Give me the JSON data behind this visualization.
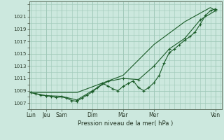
{
  "background_color": "#cce8de",
  "grid_color": "#9fc8b8",
  "line_color": "#1a5c28",
  "title": "Pression niveau de la mer( hPa )",
  "ylim": [
    1006.0,
    1023.5
  ],
  "yticks": [
    1007,
    1009,
    1011,
    1013,
    1015,
    1017,
    1019,
    1021
  ],
  "xtick_labels": [
    "Lun",
    "Jeu",
    "Sam",
    "Dim",
    "Mar",
    "Mer",
    "Ven"
  ],
  "xtick_positions": [
    0,
    0.5,
    1.0,
    2.0,
    3.0,
    4.0,
    6.0
  ],
  "xlim": [
    -0.05,
    6.2
  ],
  "line1_x": [
    0.0,
    0.17,
    0.33,
    0.5,
    0.67,
    0.83,
    1.0,
    1.17,
    1.33,
    1.5,
    1.67,
    1.83,
    2.0,
    2.17,
    2.33,
    2.5,
    2.67,
    2.83,
    3.0,
    3.17,
    3.33,
    3.5,
    3.67,
    3.83,
    4.0,
    4.17,
    4.33,
    4.5,
    4.67,
    4.83,
    5.0,
    5.17,
    5.33,
    5.5,
    5.67,
    5.83,
    6.0
  ],
  "line1_y": [
    1008.7,
    1008.5,
    1008.3,
    1008.2,
    1008.1,
    1007.9,
    1008.0,
    1007.8,
    1007.4,
    1007.3,
    1007.8,
    1008.3,
    1008.8,
    1009.5,
    1010.2,
    1009.8,
    1009.3,
    1009.0,
    1009.7,
    1010.2,
    1010.6,
    1009.5,
    1009.0,
    1009.5,
    1010.3,
    1011.5,
    1013.5,
    1015.2,
    1015.8,
    1016.5,
    1017.2,
    1017.8,
    1018.5,
    1019.8,
    1021.2,
    1022.0,
    1022.3
  ],
  "line2_x": [
    0.0,
    0.5,
    1.0,
    1.5,
    2.0,
    2.5,
    3.0,
    3.5,
    4.0,
    4.5,
    5.0,
    5.5,
    6.0
  ],
  "line2_y": [
    1008.7,
    1008.2,
    1008.1,
    1007.5,
    1009.0,
    1010.5,
    1011.0,
    1010.8,
    1013.0,
    1015.8,
    1017.5,
    1020.5,
    1022.0
  ],
  "line3_x": [
    0.0,
    1.5,
    3.0,
    4.0,
    5.0,
    5.83,
    6.0
  ],
  "line3_y": [
    1008.7,
    1008.7,
    1011.5,
    1016.5,
    1020.2,
    1022.5,
    1022.0
  ]
}
